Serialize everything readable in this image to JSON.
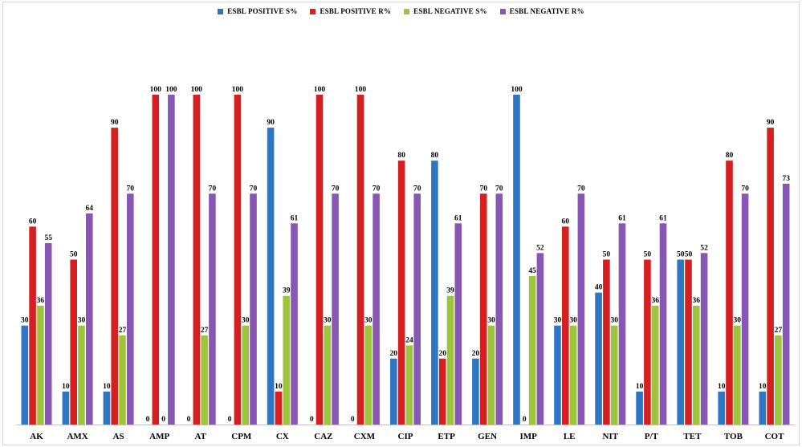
{
  "chart_data": {
    "type": "bar",
    "categories": [
      "AK",
      "AMX",
      "AS",
      "AMP",
      "AT",
      "CPM",
      "CX",
      "CAZ",
      "CXM",
      "CIP",
      "ETP",
      "GEN",
      "IMP",
      "LE",
      "NIT",
      "P/T",
      "TET",
      "TOB",
      "COT"
    ],
    "series": [
      {
        "name": "ESBL POSITIVE S%",
        "color": "#2e75c4",
        "values": [
          30,
          10,
          10,
          0,
          0,
          0,
          90,
          0,
          0,
          20,
          80,
          20,
          100,
          30,
          40,
          10,
          50,
          10,
          10
        ]
      },
      {
        "name": "ESBL POSITIVE R%",
        "color": "#d42020",
        "values": [
          60,
          50,
          90,
          100,
          100,
          100,
          10,
          100,
          100,
          80,
          20,
          70,
          0,
          60,
          50,
          50,
          50,
          80,
          90
        ]
      },
      {
        "name": "ESBL NEGATIVE S%",
        "color": "#9cc43c",
        "values": [
          36,
          30,
          27,
          0,
          27,
          30,
          39,
          30,
          30,
          24,
          39,
          30,
          45,
          30,
          30,
          36,
          36,
          30,
          27
        ]
      },
      {
        "name": "ESBL NEGATIVE R%",
        "color": "#8857b4",
        "values": [
          55,
          64,
          70,
          100,
          70,
          70,
          61,
          70,
          70,
          70,
          61,
          70,
          52,
          70,
          61,
          61,
          52,
          70,
          73
        ]
      }
    ],
    "ylim": [
      0,
      100
    ],
    "legend_position": "top-center",
    "grid": false
  }
}
